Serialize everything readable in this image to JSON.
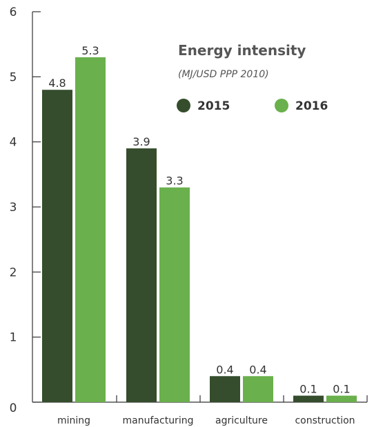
{
  "chart_data": {
    "type": "bar",
    "title": "Energy intensity",
    "subtitle": "(MJ/USD PPP 2010)",
    "categories": [
      "mining",
      "manufacturing",
      "agriculture",
      "construction"
    ],
    "series": [
      {
        "name": "2015",
        "values": [
          4.8,
          3.9,
          0.4,
          0.1
        ],
        "value_labels": [
          "4.8",
          "3.9",
          "0.4",
          "0.1"
        ],
        "color": "#354d2c"
      },
      {
        "name": "2016",
        "values": [
          5.3,
          3.3,
          0.4,
          0.1
        ],
        "value_labels": [
          "5.3",
          "3.3",
          "0.4",
          "0.1"
        ],
        "color": "#6ab04c"
      }
    ],
    "y_ticks": [
      "0",
      "1",
      "2",
      "3",
      "4",
      "5",
      "6"
    ],
    "ylim": [
      0,
      6
    ],
    "xlabel": "",
    "ylabel": "",
    "grid": false,
    "legend_position": "top-right"
  }
}
